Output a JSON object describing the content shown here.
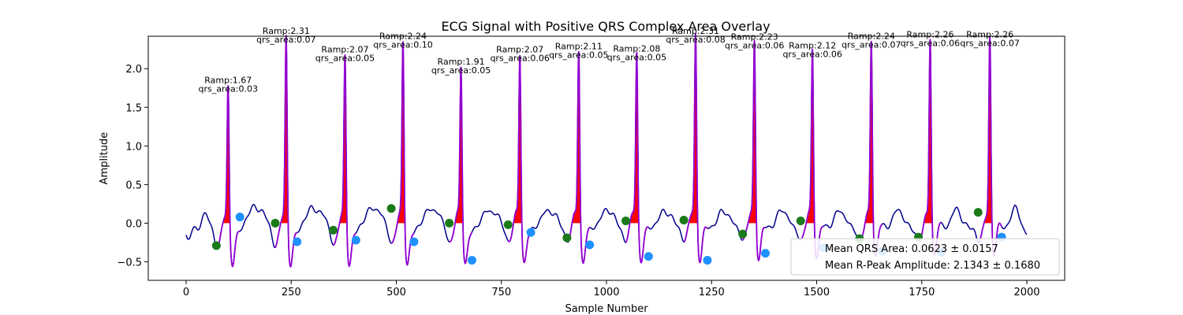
{
  "chart_data": {
    "type": "line",
    "title": "ECG Signal with Positive QRS Complex Area Overlay",
    "xlabel": "Sample Number",
    "ylabel": "Amplitude",
    "xlim": [
      -90,
      2090
    ],
    "ylim": [
      -0.74,
      2.42
    ],
    "xticks": [
      0,
      250,
      500,
      750,
      1000,
      1250,
      1500,
      1750,
      2000
    ],
    "yticks": [
      -0.5,
      0.0,
      0.5,
      1.0,
      1.5,
      2.0
    ],
    "ytick_labels": [
      "−0.5",
      "0.0",
      "0.5",
      "1.0",
      "1.5",
      "2.0"
    ],
    "grid": false,
    "colors": {
      "signal": "#00008b",
      "qrs_segment": "#9400d3",
      "qrs_area_fill": "#ff0000",
      "onset_marker": "#1a7a1a",
      "offset_marker": "#1e90ff"
    },
    "beats": [
      {
        "r_peak": 100,
        "r_amp": 1.67,
        "onset_x": 72,
        "onset_y": -0.29,
        "offset_x": 128,
        "offset_y": 0.08,
        "ramp_label": "Ramp:1.67",
        "area_label": "qrs_area:0.03"
      },
      {
        "r_peak": 238,
        "r_amp": 2.31,
        "onset_x": 212,
        "onset_y": 0.0,
        "offset_x": 264,
        "offset_y": -0.24,
        "ramp_label": "Ramp:2.31",
        "area_label": "qrs_area:0.07"
      },
      {
        "r_peak": 378,
        "r_amp": 2.07,
        "onset_x": 350,
        "onset_y": -0.09,
        "offset_x": 404,
        "offset_y": -0.22,
        "ramp_label": "Ramp:2.07",
        "area_label": "qrs_area:0.05"
      },
      {
        "r_peak": 516,
        "r_amp": 2.24,
        "onset_x": 488,
        "onset_y": 0.19,
        "offset_x": 542,
        "offset_y": -0.24,
        "ramp_label": "Ramp:2.24",
        "area_label": "qrs_area:0.10"
      },
      {
        "r_peak": 654,
        "r_amp": 1.91,
        "onset_x": 626,
        "onset_y": 0.0,
        "offset_x": 680,
        "offset_y": -0.48,
        "ramp_label": "Ramp:1.91",
        "area_label": "qrs_area:0.05"
      },
      {
        "r_peak": 794,
        "r_amp": 2.07,
        "onset_x": 766,
        "onset_y": -0.02,
        "offset_x": 820,
        "offset_y": -0.12,
        "ramp_label": "Ramp:2.07",
        "area_label": "qrs_area:0.06"
      },
      {
        "r_peak": 934,
        "r_amp": 2.11,
        "onset_x": 906,
        "onset_y": -0.19,
        "offset_x": 960,
        "offset_y": -0.28,
        "ramp_label": "Ramp:2.11",
        "area_label": "qrs_area:0.05"
      },
      {
        "r_peak": 1072,
        "r_amp": 2.08,
        "onset_x": 1046,
        "onset_y": 0.03,
        "offset_x": 1100,
        "offset_y": -0.43,
        "ramp_label": "Ramp:2.08",
        "area_label": "qrs_area:0.05"
      },
      {
        "r_peak": 1212,
        "r_amp": 2.31,
        "onset_x": 1184,
        "onset_y": 0.04,
        "offset_x": 1240,
        "offset_y": -0.48,
        "ramp_label": "Ramp:2.31",
        "area_label": "qrs_area:0.08"
      },
      {
        "r_peak": 1352,
        "r_amp": 2.23,
        "onset_x": 1324,
        "onset_y": -0.14,
        "offset_x": 1378,
        "offset_y": -0.39,
        "ramp_label": "Ramp:2.23",
        "area_label": "qrs_area:0.06"
      },
      {
        "r_peak": 1490,
        "r_amp": 2.12,
        "onset_x": 1462,
        "onset_y": 0.03,
        "offset_x": 1516,
        "offset_y": -0.32,
        "ramp_label": "Ramp:2.12",
        "area_label": "qrs_area:0.06"
      },
      {
        "r_peak": 1630,
        "r_amp": 2.24,
        "onset_x": 1602,
        "onset_y": -0.2,
        "offset_x": 1656,
        "offset_y": -0.36,
        "ramp_label": "Ramp:2.24",
        "area_label": "qrs_area:0.07"
      },
      {
        "r_peak": 1770,
        "r_amp": 2.26,
        "onset_x": 1742,
        "onset_y": -0.18,
        "offset_x": 1796,
        "offset_y": -0.38,
        "ramp_label": "Ramp:2.26",
        "area_label": "qrs_area:0.06"
      },
      {
        "r_peak": 1912,
        "r_amp": 2.26,
        "onset_x": 1884,
        "onset_y": 0.14,
        "offset_x": 1940,
        "offset_y": -0.18,
        "ramp_label": "Ramp:2.26",
        "area_label": "qrs_area:0.07"
      }
    ],
    "legend": {
      "placement": "lower-right",
      "entries": [
        "Mean QRS Area: 0.0623 ± 0.0157",
        "Mean R-Peak Amplitude: 2.1343 ± 0.1680"
      ]
    }
  }
}
